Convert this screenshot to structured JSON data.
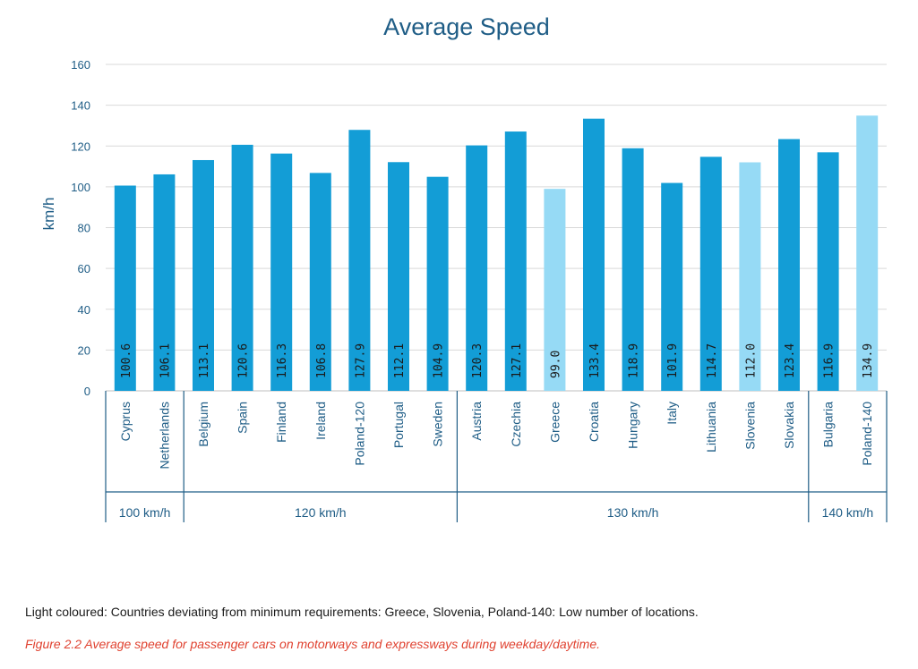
{
  "chart_data": {
    "type": "bar",
    "title": "Average Speed",
    "ylabel": "km/h",
    "xlabel": "",
    "ylim": [
      0,
      160
    ],
    "yticks": [
      0,
      20,
      40,
      60,
      80,
      100,
      120,
      140,
      160
    ],
    "grid": true,
    "categories": [
      "Cyprus",
      "Netherlands",
      "Belgium",
      "Spain",
      "Finland",
      "Ireland",
      "Poland-120",
      "Portugal",
      "Sweden",
      "Austria",
      "Czechia",
      "Greece",
      "Croatia",
      "Hungary",
      "Italy",
      "Lithuania",
      "Slovenia",
      "Slovakia",
      "Bulgaria",
      "Poland-140"
    ],
    "values": [
      100.6,
      106.1,
      113.1,
      120.6,
      116.3,
      106.8,
      127.9,
      112.1,
      104.9,
      120.3,
      127.1,
      99.0,
      133.4,
      118.9,
      101.9,
      114.7,
      112.0,
      123.4,
      116.9,
      134.9
    ],
    "value_labels": [
      "100.6",
      "106.1",
      "113.1",
      "120.6",
      "116.3",
      "106.8",
      "127.9",
      "112.1",
      "104.9",
      "120.3",
      "127.1",
      "99.0",
      "133.4",
      "118.9",
      "101.9",
      "114.7",
      "112.0",
      "123.4",
      "116.9",
      "134.9"
    ],
    "light": [
      false,
      false,
      false,
      false,
      false,
      false,
      false,
      false,
      false,
      false,
      false,
      true,
      false,
      false,
      false,
      false,
      true,
      false,
      false,
      true
    ],
    "groups": [
      {
        "label": "100 km/h",
        "count": 2
      },
      {
        "label": "120 km/h",
        "count": 7
      },
      {
        "label": "130 km/h",
        "count": 9
      },
      {
        "label": "140 km/h",
        "count": 2
      }
    ]
  },
  "colors": {
    "bar": "#139dd6",
    "bar_light": "#96daf5",
    "title": "#1f5d86",
    "axis_text": "#1f5d86",
    "grid": "#d9d9d9",
    "separator": "#1f5d86"
  },
  "note": "Light coloured: Countries deviating from minimum requirements: Greece, Slovenia, Poland-140: Low number of locations.",
  "caption": "Figure 2.2 Average speed for passenger cars on motorways and expressways during weekday/daytime."
}
